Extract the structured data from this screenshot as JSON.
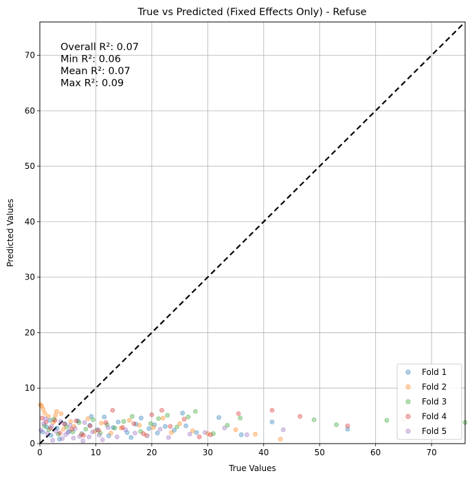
{
  "chart_data": {
    "type": "scatter",
    "title": "True vs Predicted (Fixed Effects Only) - Refuse",
    "xlabel": "True Values",
    "ylabel": "Predicted Values",
    "xlim": [
      0,
      76
    ],
    "ylim": [
      0,
      76
    ],
    "xticks": [
      0,
      10,
      20,
      30,
      40,
      50,
      60,
      70
    ],
    "yticks": [
      0,
      10,
      20,
      30,
      40,
      50,
      60,
      70
    ],
    "grid": true,
    "legend_position": "lower-right",
    "reference_line": {
      "style": "dashed",
      "color": "#000000",
      "from": [
        0,
        0
      ],
      "to": [
        76,
        76
      ]
    },
    "annotations": [
      "Overall R²: 0.07",
      "Min R²: 0.06",
      "Mean R²: 0.07",
      "Max R²: 0.09"
    ],
    "series": [
      {
        "name": "Fold 1",
        "color": "#1f77b4",
        "x": [
          0.5,
          1.2,
          2.0,
          3.1,
          4.5,
          5.2,
          6.8,
          7.5,
          8.9,
          10.2,
          11.5,
          12.3,
          14.0,
          15.6,
          17.2,
          18.1,
          19.5,
          21.0,
          22.4,
          24.0,
          25.5,
          26.1,
          28.0,
          32.0,
          36.0,
          41.5,
          55.0,
          1.8,
          3.5,
          9.2,
          13.1,
          16.3,
          20.5
        ],
        "y": [
          2.1,
          3.0,
          1.5,
          2.8,
          3.6,
          2.2,
          4.1,
          1.8,
          3.3,
          2.5,
          4.8,
          1.4,
          3.9,
          2.0,
          3.5,
          4.6,
          2.7,
          1.9,
          3.1,
          2.4,
          5.5,
          3.2,
          2.0,
          4.7,
          1.6,
          3.9,
          2.6,
          4.2,
          0.8,
          4.9,
          2.9,
          1.1,
          3.4
        ]
      },
      {
        "name": "Fold 2",
        "color": "#ff7f0e",
        "x": [
          0.3,
          0.9,
          1.5,
          2.4,
          3.0,
          4.2,
          5.5,
          6.1,
          7.4,
          8.6,
          9.8,
          11.0,
          12.7,
          14.5,
          16.0,
          17.8,
          19.0,
          20.3,
          22.0,
          23.5,
          25.0,
          27.3,
          30.0,
          35.0,
          38.5,
          43.0,
          65.0,
          0.1,
          0.6,
          2.8,
          3.8
        ],
        "y": [
          6.8,
          5.5,
          4.9,
          3.8,
          5.8,
          2.6,
          4.0,
          3.1,
          1.6,
          4.5,
          2.2,
          3.7,
          1.9,
          2.8,
          4.2,
          3.3,
          1.5,
          2.9,
          4.6,
          2.0,
          3.6,
          2.3,
          1.8,
          2.5,
          1.7,
          0.8,
          4.4,
          7.0,
          6.2,
          5.1,
          5.4
        ]
      },
      {
        "name": "Fold 3",
        "color": "#2ca02c",
        "x": [
          0.8,
          1.6,
          2.5,
          3.3,
          4.8,
          5.9,
          7.0,
          8.2,
          9.5,
          10.8,
          12.0,
          13.4,
          15.0,
          16.5,
          18.0,
          19.8,
          21.2,
          22.8,
          24.5,
          26.5,
          27.8,
          31.0,
          33.5,
          35.8,
          49.0,
          53.0,
          62.0,
          76.0
        ],
        "y": [
          3.2,
          2.5,
          4.4,
          1.7,
          3.0,
          2.1,
          3.8,
          2.6,
          4.3,
          1.9,
          3.4,
          2.8,
          4.0,
          4.9,
          2.2,
          3.6,
          4.5,
          5.1,
          3.0,
          4.8,
          5.8,
          1.8,
          3.3,
          4.6,
          4.3,
          3.4,
          4.2,
          3.8
        ]
      },
      {
        "name": "Fold 4",
        "color": "#d62728",
        "x": [
          0.4,
          1.1,
          1.9,
          2.7,
          3.6,
          4.4,
          5.7,
          6.5,
          7.8,
          9.0,
          10.5,
          11.8,
          13.0,
          14.8,
          16.8,
          18.5,
          20.0,
          21.8,
          23.3,
          25.8,
          28.5,
          30.5,
          35.5,
          41.5,
          46.5,
          55.0
        ],
        "y": [
          4.6,
          3.9,
          2.8,
          4.2,
          1.9,
          3.5,
          2.6,
          4.1,
          1.5,
          3.2,
          2.4,
          3.8,
          6.0,
          2.9,
          3.6,
          1.8,
          5.2,
          6.0,
          3.1,
          4.4,
          1.2,
          1.6,
          5.4,
          6.0,
          4.9,
          3.2
        ]
      },
      {
        "name": "Fold 5",
        "color": "#9467bd",
        "x": [
          0.2,
          0.7,
          1.3,
          2.1,
          2.9,
          3.7,
          4.6,
          5.4,
          6.3,
          7.1,
          8.0,
          9.4,
          10.6,
          12.2,
          13.8,
          15.3,
          17.0,
          19.2,
          21.5,
          23.0,
          26.8,
          29.5,
          33.0,
          37.0,
          43.5,
          1.0,
          2.3,
          4.0,
          5.0,
          6.0,
          7.7,
          8.8,
          11.2
        ],
        "y": [
          2.4,
          3.6,
          1.8,
          3.1,
          2.2,
          4.0,
          1.6,
          3.3,
          2.7,
          1.3,
          3.8,
          2.1,
          1.5,
          2.9,
          1.2,
          2.5,
          1.9,
          1.4,
          2.6,
          1.1,
          1.7,
          2.0,
          2.8,
          1.6,
          2.5,
          4.5,
          0.6,
          0.9,
          2.0,
          1.0,
          0.5,
          1.2,
          0.7
        ]
      }
    ]
  }
}
